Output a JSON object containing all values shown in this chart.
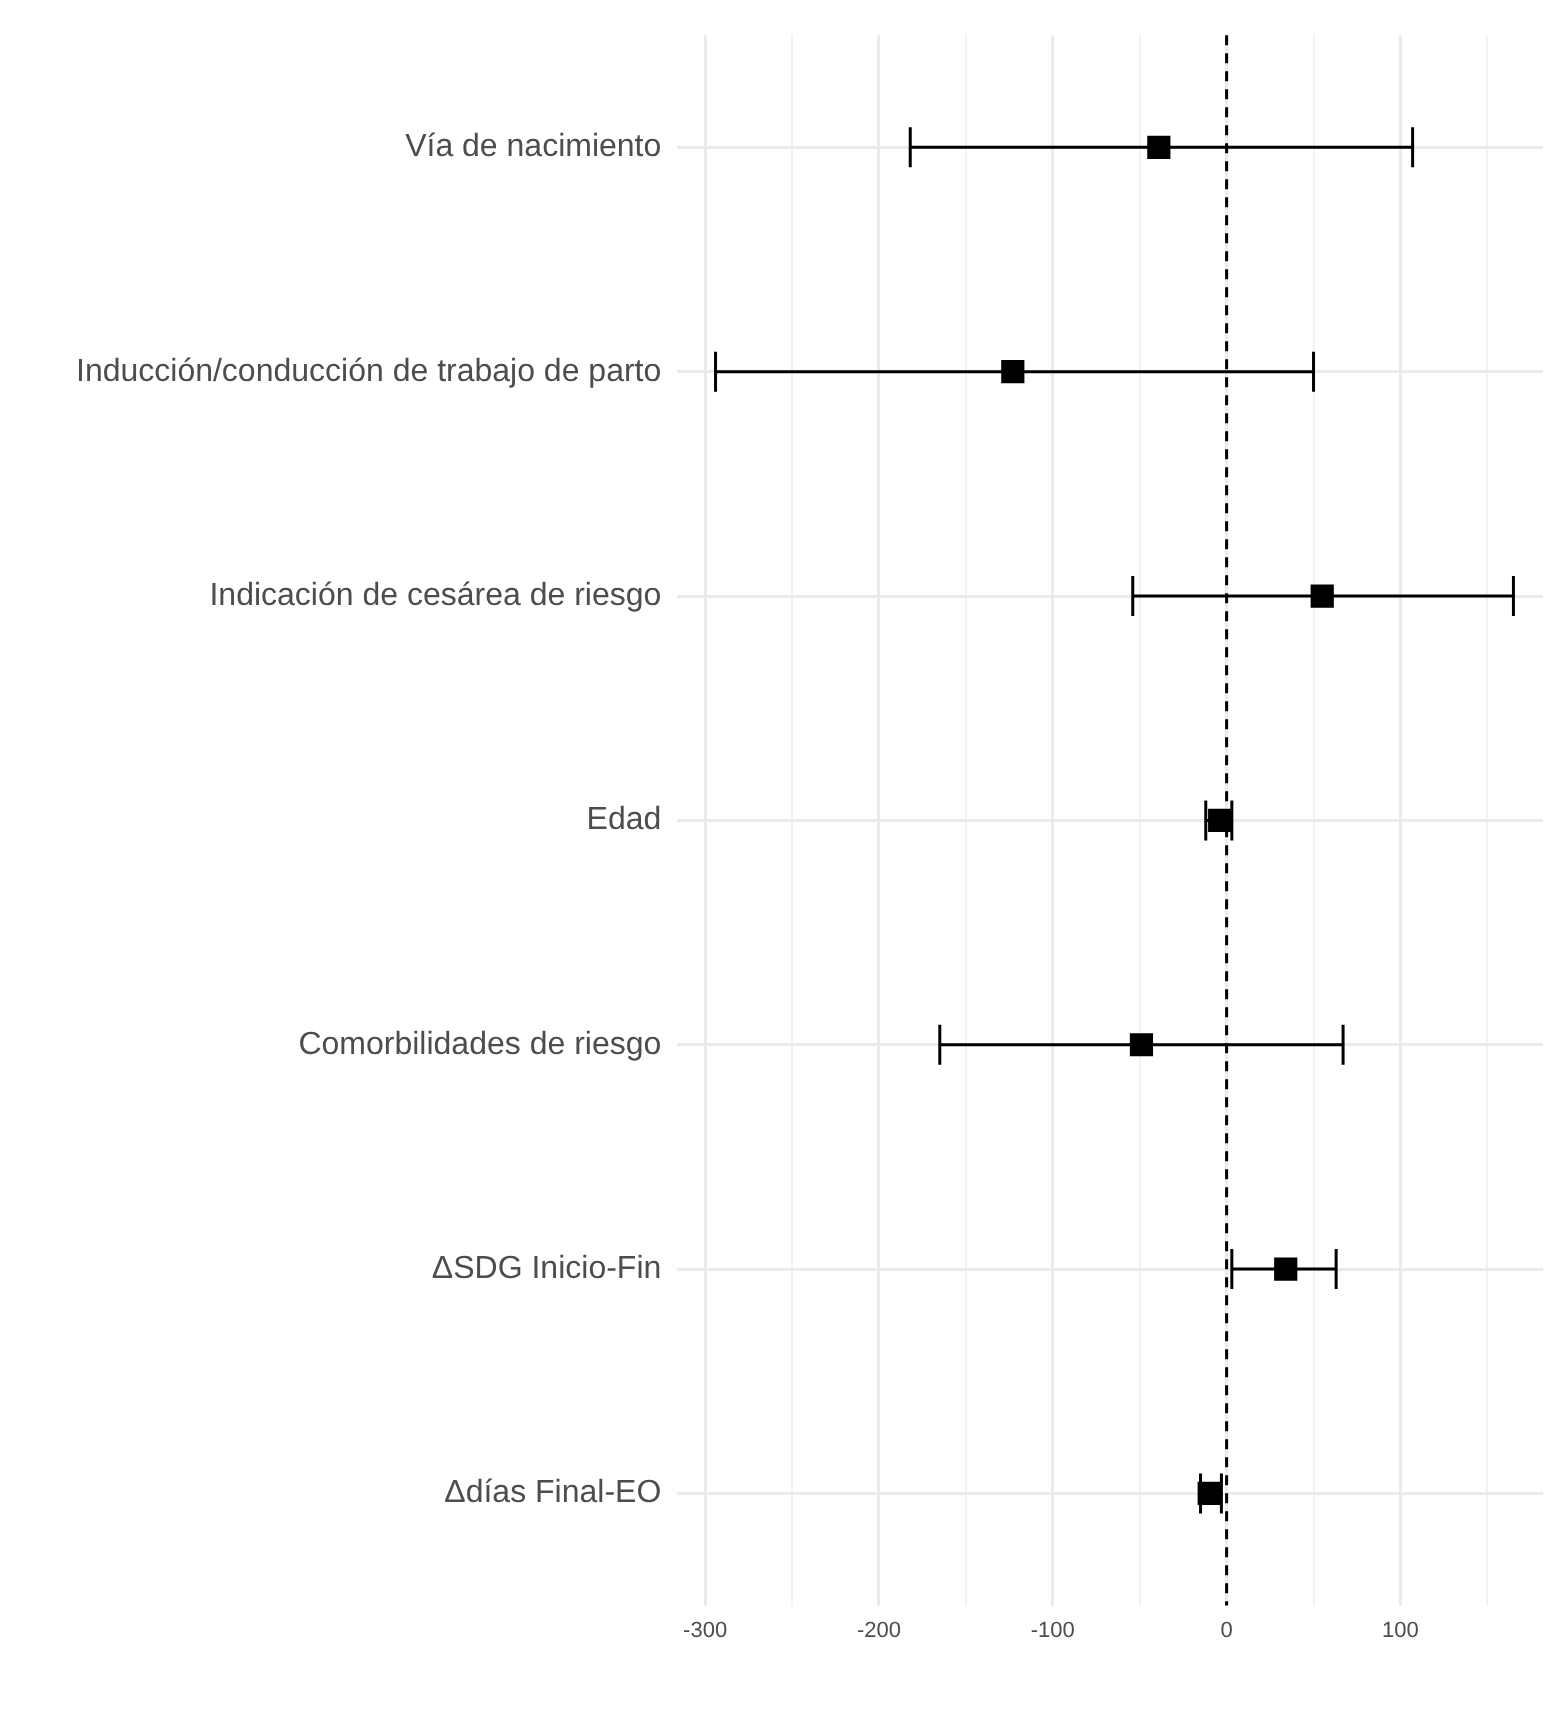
{
  "chart_data": {
    "type": "scatter",
    "orientation": "horizontal",
    "categories": [
      "Vía de nacimiento",
      "Inducción/conducción de trabajo de parto",
      "Indicación de cesárea de riesgo",
      "Edad",
      "Comorbilidades de riesgo",
      "ΔSDG Inicio-Fin",
      "Δdías Final-EO"
    ],
    "values": [
      -39,
      -123,
      55,
      -4,
      -49,
      34,
      -10
    ],
    "errors": [
      [
        -182,
        107
      ],
      [
        -294,
        50
      ],
      [
        -54,
        165
      ],
      [
        -12,
        3
      ],
      [
        -165,
        67
      ],
      [
        3,
        63
      ],
      [
        -15,
        -3
      ]
    ],
    "color": "#000000",
    "marker": "square",
    "xlim": [
      -316,
      182
    ],
    "xticks": [
      -300,
      {
        "value": -250,
        "label": null
      },
      -200,
      {
        "value": -150,
        "label": null
      },
      -100,
      {
        "value": -50,
        "label": null
      },
      0,
      {
        "value": 50,
        "label": null
      },
      100,
      {
        "value": 150,
        "label": null
      }
    ],
    "ref_lines": [
      {
        "axis": "x",
        "value": 0,
        "line_style": "dashed",
        "color": "#000000"
      }
    ],
    "grid": true,
    "legend": false
  }
}
